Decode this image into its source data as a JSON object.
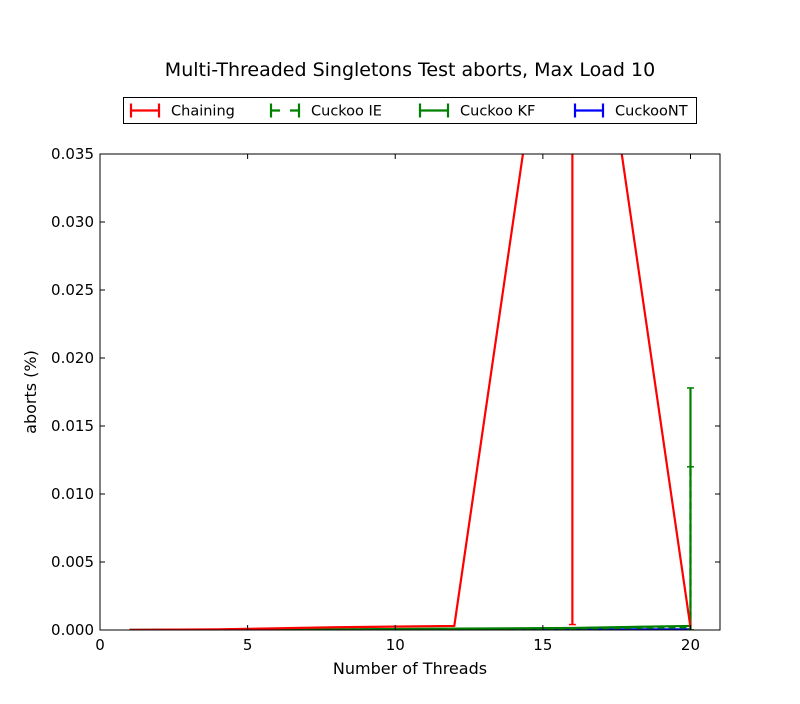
{
  "chart_data": {
    "type": "line",
    "title": "Multi-Threaded Singletons Test aborts, Max Load 10",
    "xlabel": "Number of Threads",
    "ylabel": "aborts (%)",
    "xlim": [
      0,
      21
    ],
    "ylim": [
      0,
      0.035
    ],
    "x_ticks": [
      0,
      5,
      10,
      15,
      20
    ],
    "y_ticks": [
      0.0,
      0.005,
      0.01,
      0.015,
      0.02,
      0.025,
      0.03,
      0.035
    ],
    "x_tick_labels": [
      "0",
      "5",
      "10",
      "15",
      "20"
    ],
    "y_tick_labels": [
      "0.000",
      "0.005",
      "0.010",
      "0.015",
      "0.020",
      "0.025",
      "0.030",
      "0.035"
    ],
    "grid": false,
    "legend_position": "top-center",
    "series": [
      {
        "name": "Chaining",
        "color": "#ff0000",
        "line_style": "solid",
        "x": [
          1,
          2,
          4,
          8,
          12,
          16,
          20
        ],
        "y": [
          0.0,
          2e-05,
          5e-05,
          0.0002,
          0.0003,
          0.06,
          0.0002
        ],
        "error_bars": [
          {
            "x": 16,
            "low": 0.0004,
            "high": 0.12
          }
        ]
      },
      {
        "name": "Cuckoo IE",
        "color": "#008000",
        "line_style": "dashed",
        "x": [
          1,
          2,
          4,
          8,
          12,
          16,
          20
        ],
        "y": [
          0.0,
          1e-05,
          2e-05,
          4e-05,
          8e-05,
          0.00012,
          0.0002
        ],
        "error_bars": [
          {
            "x": 20,
            "low": 0.0,
            "high": 0.012
          }
        ]
      },
      {
        "name": "Cuckoo KF",
        "color": "#008000",
        "line_style": "solid",
        "x": [
          1,
          2,
          4,
          8,
          12,
          16,
          20
        ],
        "y": [
          0.0,
          1e-05,
          3e-05,
          5e-05,
          0.0001,
          0.00015,
          0.0003
        ],
        "error_bars": [
          {
            "x": 20,
            "low": 0.0,
            "high": 0.0178
          }
        ]
      },
      {
        "name": "CuckooNT",
        "color": "#0000ff",
        "line_style": "solid",
        "x": [
          1,
          2,
          4,
          8,
          12,
          16,
          20
        ],
        "y": [
          0.0,
          0.0,
          1e-05,
          2e-05,
          3e-05,
          4e-05,
          5e-05
        ],
        "error_bars": []
      }
    ]
  }
}
